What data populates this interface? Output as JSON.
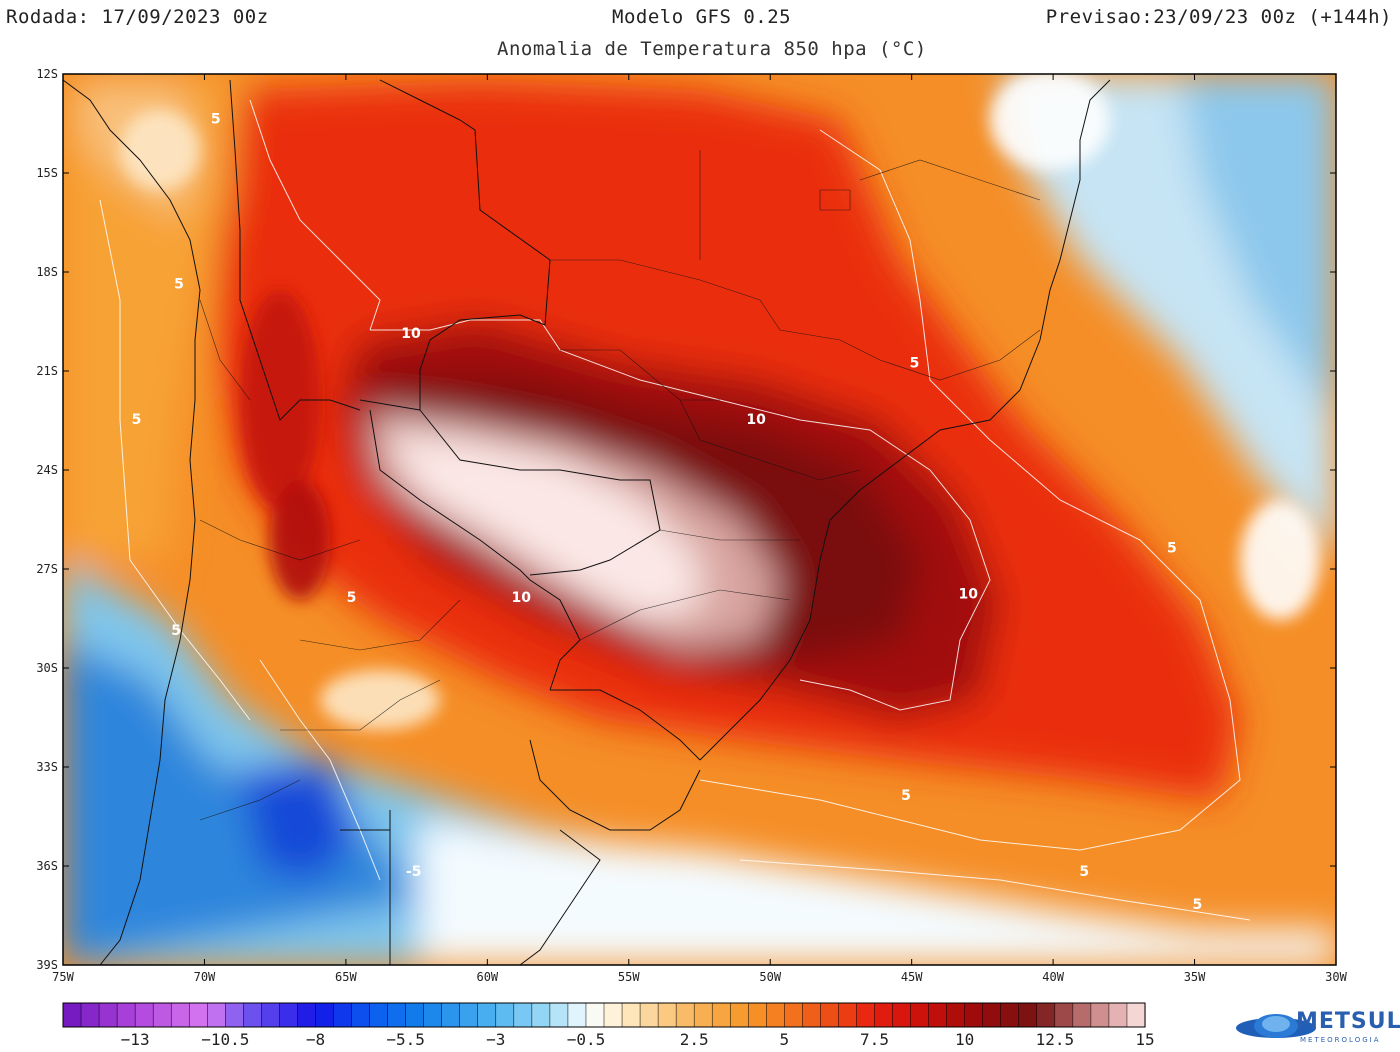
{
  "header": {
    "run": "Rodada: 17/09/2023 00z",
    "model": "Modelo GFS 0.25",
    "forecast": "Previsao:23/09/23 00z (+144h)",
    "subtitle": "Anomalia de Temperatura 850 hpa (°C)"
  },
  "axes": {
    "lat_labels": [
      "12S",
      "15S",
      "18S",
      "21S",
      "24S",
      "27S",
      "30S",
      "33S",
      "36S",
      "39S"
    ],
    "lon_labels": [
      "75W",
      "70W",
      "65W",
      "60W",
      "55W",
      "50W",
      "45W",
      "40W",
      "35W",
      "30W"
    ],
    "lon_range": [
      -75,
      -30
    ],
    "lat_range": [
      -39,
      -12
    ]
  },
  "contour_labels": [
    {
      "text": "5",
      "lon": -69.6,
      "lat": -13.5
    },
    {
      "text": "5",
      "lon": -70.9,
      "lat": -18.5
    },
    {
      "text": "5",
      "lon": -72.4,
      "lat": -22.6
    },
    {
      "text": "5",
      "lon": -71.0,
      "lat": -29.0
    },
    {
      "text": "5",
      "lon": -64.8,
      "lat": -28.0
    },
    {
      "text": "10",
      "lon": -62.7,
      "lat": -20.0
    },
    {
      "text": "10",
      "lon": -50.5,
      "lat": -22.6
    },
    {
      "text": "10",
      "lon": -58.8,
      "lat": -28.0
    },
    {
      "text": "10",
      "lon": -43.0,
      "lat": -27.9
    },
    {
      "text": "5",
      "lon": -44.9,
      "lat": -20.9
    },
    {
      "text": "5",
      "lon": -35.8,
      "lat": -26.5
    },
    {
      "text": "5",
      "lon": -45.2,
      "lat": -34.0
    },
    {
      "text": "5",
      "lon": -38.9,
      "lat": -36.3
    },
    {
      "text": "5",
      "lon": -34.9,
      "lat": -37.3
    },
    {
      "text": "-5",
      "lon": -62.6,
      "lat": -36.3
    }
  ],
  "colorbar": {
    "min": -15,
    "max": 15,
    "step": 0.5,
    "tick_labels": [
      "-13",
      "-10.5",
      "-8",
      "-5.5",
      "-3",
      "-0.5",
      "2.5",
      "5",
      "7.5",
      "10",
      "12.5",
      "15"
    ],
    "tick_values": [
      -13,
      -10.5,
      -8,
      -5.5,
      -3,
      -0.5,
      2.5,
      5,
      7.5,
      10,
      12.5,
      15
    ]
  },
  "logo": {
    "name": "METSUL",
    "sub": "METEOROLOGIA"
  },
  "colors": {
    "warm_max": "#fbe8e6",
    "deep_red": "#7a0a0a",
    "red": "#e8200e",
    "orange": "#f79a2a",
    "cold": "#1a72d8"
  }
}
